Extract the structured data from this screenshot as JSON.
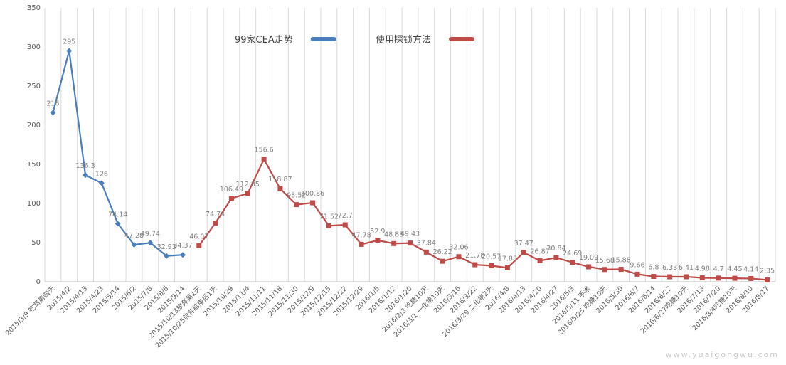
{
  "chart_data": {
    "type": "line",
    "categories": [
      "2015/3/9 吃骂第四天",
      "2015/4/2",
      "2015/4/13",
      "2015/4/23",
      "2015/5/14",
      "2015/6/2",
      "2015/7/8",
      "2015/8/6",
      "2015/9/14",
      "2015/10/13放弃第1天",
      "2015/10/25放弃结束后1天",
      "2015/10/29",
      "2015/11/4",
      "2015/11/11",
      "2015/11/18",
      "2015/11/30",
      "2015/12/9",
      "2015/12/15",
      "2015/12/22",
      "2015/12/29",
      "2016/1/5",
      "2016/1/12",
      "2016/1/20",
      "2016/2/3 吃糖10天",
      "2016/3/1 一化第10天",
      "2016/3/16",
      "2016/3/22",
      "2016/3/29 二化第2天",
      "2016/4/8",
      "2016/4/13",
      "2016/4/20",
      "2016/4/27",
      "2016/5/3",
      "2016/5/11 手术",
      "2016/5/25 吃糖10天",
      "2016/5/30",
      "2016/6/7",
      "2016/6/14",
      "2016/6/22",
      "2016/6/27吃糖10天",
      "2016/7/13",
      "2016/7/20",
      "2016/8/4吃糖10天",
      "2016/8/10",
      "2016/8/17"
    ],
    "series": [
      {
        "name": "99家CEA走势",
        "color": "#4a7ebb",
        "marker": "diamond",
        "values": [
          216,
          295,
          136.3,
          126,
          74.14,
          47.28,
          49.74,
          32.93,
          34.37,
          null,
          null,
          null,
          null,
          null,
          null,
          null,
          null,
          null,
          null,
          null,
          null,
          null,
          null,
          null,
          null,
          null,
          null,
          null,
          null,
          null,
          null,
          null,
          null,
          null,
          null,
          null,
          null,
          null,
          null,
          null,
          null,
          null,
          null,
          null,
          null
        ]
      },
      {
        "name": "使用探锁方法",
        "color": "#be4b48",
        "marker": "square",
        "values": [
          null,
          null,
          null,
          null,
          null,
          null,
          null,
          null,
          null,
          46.07,
          74.74,
          106.49,
          112.85,
          156.6,
          118.87,
          98.52,
          100.86,
          71.52,
          72.7,
          47.78,
          52.9,
          48.83,
          49.43,
          37.84,
          26.22,
          32.06,
          21.78,
          20.57,
          17.88,
          37.47,
          26.87,
          30.84,
          24.69,
          19.09,
          15.68,
          15.88,
          9.66,
          6.8,
          6.33,
          6.41,
          4.98,
          4.7,
          4.45,
          4.14,
          2.35
        ]
      }
    ],
    "ylim": [
      0,
      350
    ],
    "yticks": [
      0,
      50,
      100,
      150,
      200,
      250,
      300,
      350
    ],
    "grid": true,
    "legend": "top"
  },
  "watermark": "www.yuaigongwu.com"
}
